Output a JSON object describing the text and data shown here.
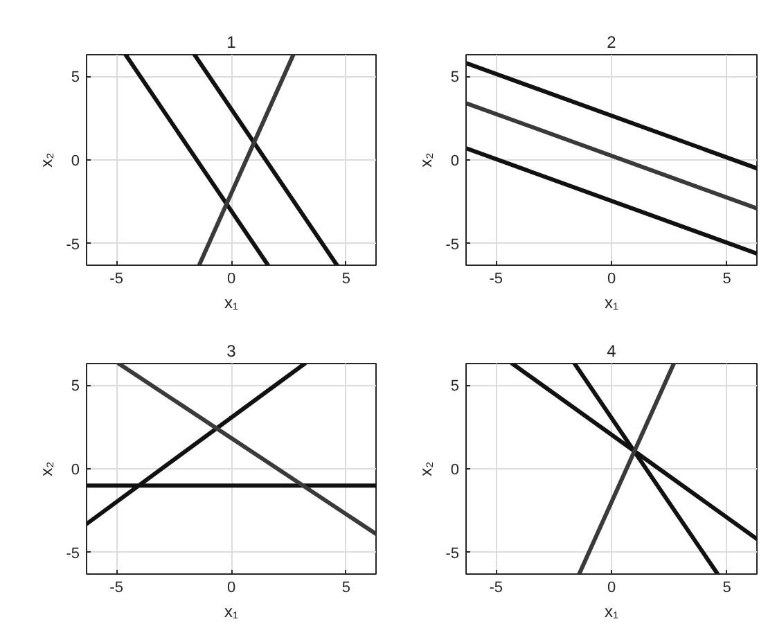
{
  "chart_data": [
    {
      "type": "line",
      "title": "1",
      "xlabel": "x₁",
      "ylabel": "x₂",
      "xlim": [
        -6.3,
        6.3
      ],
      "ylim": [
        -6.3,
        6.3
      ],
      "xticks": [
        -5,
        0,
        5
      ],
      "yticks": [
        -5,
        0,
        5
      ],
      "grid": true,
      "series": [
        {
          "color": "#111111",
          "x": [
            -4.6,
            1.6
          ],
          "values": [
            6.3,
            -6.3
          ]
        },
        {
          "color": "#111111",
          "x": [
            -1.6,
            4.6
          ],
          "values": [
            6.3,
            -6.3
          ]
        },
        {
          "color": "#3a3a3a",
          "x": [
            -1.4,
            2.7
          ],
          "values": [
            -6.3,
            6.3
          ]
        }
      ]
    },
    {
      "type": "line",
      "title": "2",
      "xlabel": "x₁",
      "ylabel": "x₂",
      "xlim": [
        -6.3,
        6.3
      ],
      "ylim": [
        -6.3,
        6.3
      ],
      "xticks": [
        -5,
        0,
        5
      ],
      "yticks": [
        -5,
        0,
        5
      ],
      "grid": true,
      "series": [
        {
          "color": "#111111",
          "x": [
            -6.3,
            6.3
          ],
          "values": [
            5.8,
            -0.5
          ]
        },
        {
          "color": "#3a3a3a",
          "x": [
            -6.3,
            6.3
          ],
          "values": [
            3.4,
            -2.9
          ]
        },
        {
          "color": "#111111",
          "x": [
            -6.3,
            6.3
          ],
          "values": [
            0.7,
            -5.6
          ]
        }
      ]
    },
    {
      "type": "line",
      "title": "3",
      "xlabel": "x₁",
      "ylabel": "x₂",
      "xlim": [
        -6.3,
        6.3
      ],
      "ylim": [
        -6.3,
        6.3
      ],
      "xticks": [
        -5,
        0,
        5
      ],
      "yticks": [
        -5,
        0,
        5
      ],
      "grid": true,
      "series": [
        {
          "color": "#111111",
          "x": [
            -6.3,
            6.3
          ],
          "values": [
            -1,
            -1
          ]
        },
        {
          "color": "#111111",
          "x": [
            -6.3,
            3.2
          ],
          "values": [
            -3.3,
            6.3
          ]
        },
        {
          "color": "#3a3a3a",
          "x": [
            -4.9,
            6.3
          ],
          "values": [
            6.3,
            -3.9
          ]
        }
      ]
    },
    {
      "type": "line",
      "title": "4",
      "xlabel": "x₁",
      "ylabel": "x₂",
      "xlim": [
        -6.3,
        6.3
      ],
      "ylim": [
        -6.3,
        6.3
      ],
      "xticks": [
        -5,
        0,
        5
      ],
      "yticks": [
        -5,
        0,
        5
      ],
      "grid": true,
      "series": [
        {
          "color": "#111111",
          "x": [
            -4.3,
            6.3
          ],
          "values": [
            6.3,
            -4.2
          ]
        },
        {
          "color": "#111111",
          "x": [
            -1.6,
            4.6
          ],
          "values": [
            6.3,
            -6.3
          ]
        },
        {
          "color": "#3a3a3a",
          "x": [
            -1.4,
            2.7
          ],
          "values": [
            -6.3,
            6.3
          ]
        }
      ]
    }
  ]
}
